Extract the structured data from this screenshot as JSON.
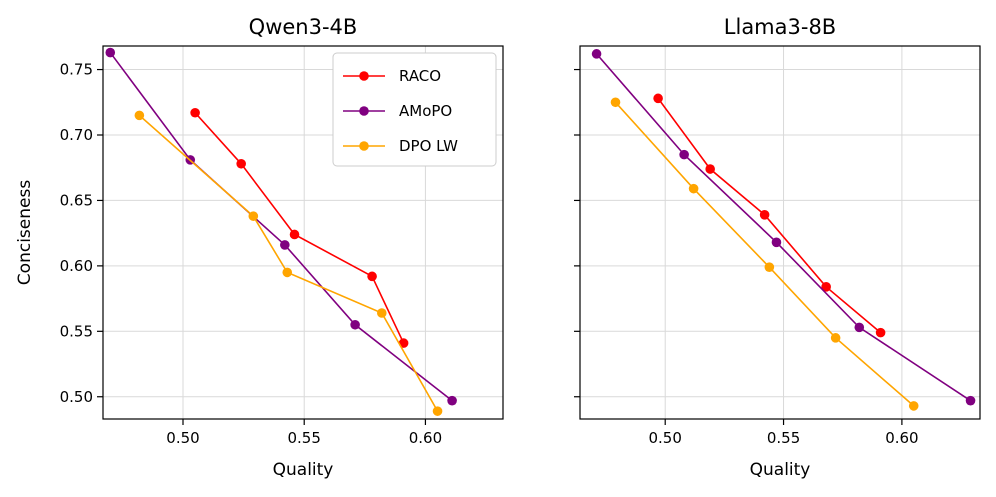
{
  "chart_data": [
    {
      "type": "line",
      "title": "Qwen3-4B",
      "xlabel": "Quality",
      "ylabel": "Conciseness",
      "xlim": [
        0.467,
        0.632
      ],
      "ylim": [
        0.483,
        0.768
      ],
      "xticks": [
        0.5,
        0.55,
        0.6
      ],
      "xtick_labels": [
        "0.50",
        "0.55",
        "0.60"
      ],
      "yticks": [
        0.5,
        0.55,
        0.6,
        0.65,
        0.7,
        0.75
      ],
      "ytick_labels": [
        "0.50",
        "0.55",
        "0.60",
        "0.65",
        "0.70",
        "0.75"
      ],
      "show_ytick_labels": true,
      "grid": true,
      "legend": "top-right",
      "series": [
        {
          "name": "RACO",
          "color": "#ff0000",
          "x": [
            0.505,
            0.524,
            0.546,
            0.578,
            0.591
          ],
          "y": [
            0.717,
            0.678,
            0.624,
            0.592,
            0.541
          ]
        },
        {
          "name": "AMoPO",
          "color": "#800080",
          "x": [
            0.47,
            0.503,
            0.542,
            0.571,
            0.611
          ],
          "y": [
            0.763,
            0.681,
            0.616,
            0.555,
            0.497
          ]
        },
        {
          "name": "DPO LW",
          "color": "#ffa500",
          "x": [
            0.482,
            0.529,
            0.543,
            0.582,
            0.605
          ],
          "y": [
            0.715,
            0.638,
            0.595,
            0.564,
            0.489
          ]
        }
      ]
    },
    {
      "type": "line",
      "title": "Llama3-8B",
      "xlabel": "Quality",
      "ylabel": "",
      "xlim": [
        0.464,
        0.633
      ],
      "ylim": [
        0.483,
        0.768
      ],
      "xticks": [
        0.5,
        0.55,
        0.6
      ],
      "xtick_labels": [
        "0.50",
        "0.55",
        "0.60"
      ],
      "yticks": [
        0.5,
        0.55,
        0.6,
        0.65,
        0.7,
        0.75
      ],
      "ytick_labels": [],
      "show_ytick_labels": false,
      "grid": true,
      "legend": "none",
      "series": [
        {
          "name": "RACO",
          "color": "#ff0000",
          "x": [
            0.497,
            0.519,
            0.542,
            0.568,
            0.591
          ],
          "y": [
            0.728,
            0.674,
            0.639,
            0.584,
            0.549
          ]
        },
        {
          "name": "AMoPO",
          "color": "#800080",
          "x": [
            0.471,
            0.508,
            0.547,
            0.582,
            0.629
          ],
          "y": [
            0.762,
            0.685,
            0.618,
            0.553,
            0.497
          ]
        },
        {
          "name": "DPO LW",
          "color": "#ffa500",
          "x": [
            0.479,
            0.512,
            0.544,
            0.572,
            0.605
          ],
          "y": [
            0.725,
            0.659,
            0.599,
            0.545,
            0.493
          ]
        }
      ]
    }
  ]
}
